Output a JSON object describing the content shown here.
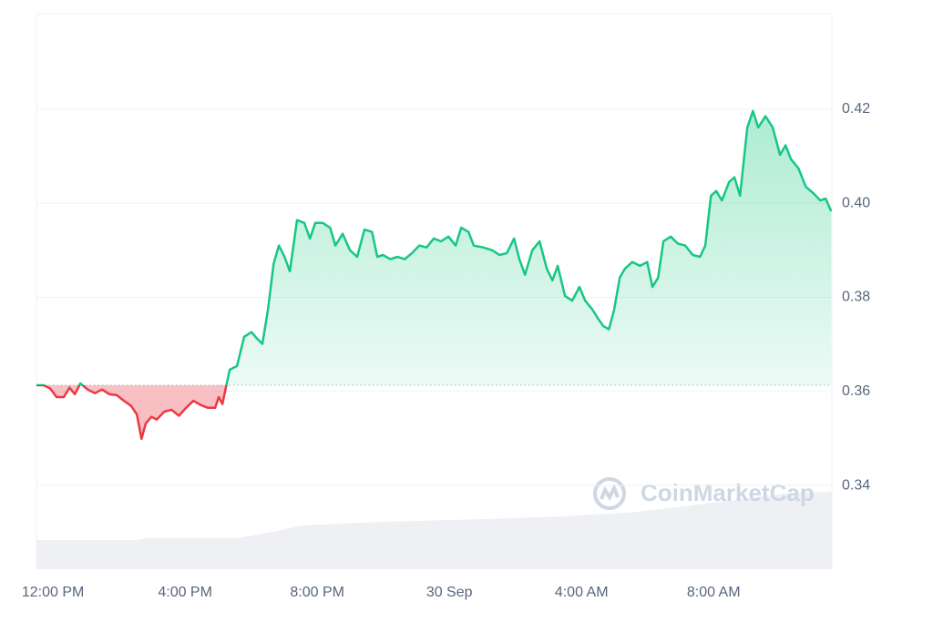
{
  "chart_data": {
    "type": "line",
    "watermark": "CoinMarketCap",
    "baseline": 0.3613,
    "up_color": "#16c784",
    "down_color": "#ea3943",
    "x": [
      -0.5,
      -0.28,
      -0.08,
      0.11,
      0.33,
      0.5,
      0.66,
      0.83,
      1.05,
      1.27,
      1.49,
      1.71,
      1.93,
      2.15,
      2.37,
      2.54,
      2.68,
      2.81,
      2.98,
      3.14,
      3.37,
      3.59,
      3.81,
      4.03,
      4.25,
      4.47,
      4.69,
      4.91,
      5.02,
      5.13,
      5.24,
      5.35,
      5.57,
      5.79,
      6.01,
      6.18,
      6.34,
      6.51,
      6.68,
      6.84,
      7.01,
      7.17,
      7.39,
      7.61,
      7.78,
      7.94,
      8.17,
      8.39,
      8.55,
      8.77,
      8.99,
      9.21,
      9.43,
      9.66,
      9.82,
      9.99,
      10.21,
      10.43,
      10.65,
      10.87,
      11.09,
      11.31,
      11.53,
      11.75,
      11.97,
      12.19,
      12.36,
      12.58,
      12.74,
      13.02,
      13.3,
      13.52,
      13.74,
      13.96,
      14.12,
      14.29,
      14.51,
      14.73,
      14.95,
      15.12,
      15.28,
      15.5,
      15.72,
      15.94,
      16.11,
      16.33,
      16.5,
      16.66,
      16.83,
      16.99,
      17.16,
      17.32,
      17.54,
      17.77,
      17.99,
      18.15,
      18.32,
      18.48,
      18.7,
      18.92,
      19.14,
      19.37,
      19.59,
      19.75,
      19.92,
      20.08,
      20.25,
      20.47,
      20.63,
      20.8,
      21.02,
      21.19,
      21.35,
      21.57,
      21.79,
      22.01,
      22.18,
      22.34,
      22.57,
      22.79,
      23.01,
      23.23,
      23.39,
      23.56
    ],
    "values": [
      0.3613,
      0.3613,
      0.3606,
      0.3588,
      0.3588,
      0.3608,
      0.3594,
      0.3617,
      0.3604,
      0.3596,
      0.3604,
      0.3594,
      0.3592,
      0.358,
      0.3569,
      0.3551,
      0.3499,
      0.3532,
      0.3546,
      0.354,
      0.3557,
      0.3561,
      0.3548,
      0.3565,
      0.358,
      0.3571,
      0.3565,
      0.3565,
      0.3588,
      0.3573,
      0.361,
      0.3646,
      0.3654,
      0.3716,
      0.3726,
      0.3712,
      0.3701,
      0.3774,
      0.3871,
      0.391,
      0.3886,
      0.3855,
      0.3964,
      0.3958,
      0.3925,
      0.3958,
      0.3958,
      0.3948,
      0.391,
      0.3935,
      0.39,
      0.3886,
      0.3944,
      0.3939,
      0.3886,
      0.389,
      0.3881,
      0.3886,
      0.3881,
      0.3894,
      0.391,
      0.3906,
      0.3925,
      0.3919,
      0.3929,
      0.391,
      0.3948,
      0.3939,
      0.391,
      0.3906,
      0.39,
      0.389,
      0.3894,
      0.3925,
      0.3881,
      0.3848,
      0.39,
      0.3919,
      0.3861,
      0.3836,
      0.3867,
      0.3803,
      0.3793,
      0.3822,
      0.3793,
      0.3774,
      0.3755,
      0.3739,
      0.3732,
      0.3774,
      0.3842,
      0.3861,
      0.3875,
      0.3867,
      0.3875,
      0.3822,
      0.3842,
      0.3919,
      0.3929,
      0.3914,
      0.391,
      0.389,
      0.3886,
      0.391,
      0.4016,
      0.4026,
      0.4006,
      0.4045,
      0.4055,
      0.4016,
      0.4161,
      0.4196,
      0.4161,
      0.4185,
      0.4161,
      0.4103,
      0.4123,
      0.4094,
      0.4074,
      0.4035,
      0.4022,
      0.4006,
      0.401,
      0.3983
    ],
    "xlim": [
      -0.5,
      23.58
    ],
    "xticks": [
      {
        "value": 0,
        "label": "12:00 PM"
      },
      {
        "value": 4,
        "label": "4:00 PM"
      },
      {
        "value": 8,
        "label": "8:00 PM"
      },
      {
        "value": 12,
        "label": "30 Sep"
      },
      {
        "value": 16,
        "label": "4:00 AM"
      },
      {
        "value": 20,
        "label": "8:00 AM"
      }
    ],
    "ylim": [
      0.3222,
      0.4403
    ],
    "yticks": [
      0.34,
      0.36,
      0.38,
      {
        "value": 0.4,
        "label": "0.40"
      },
      0.42
    ],
    "grid": true
  }
}
